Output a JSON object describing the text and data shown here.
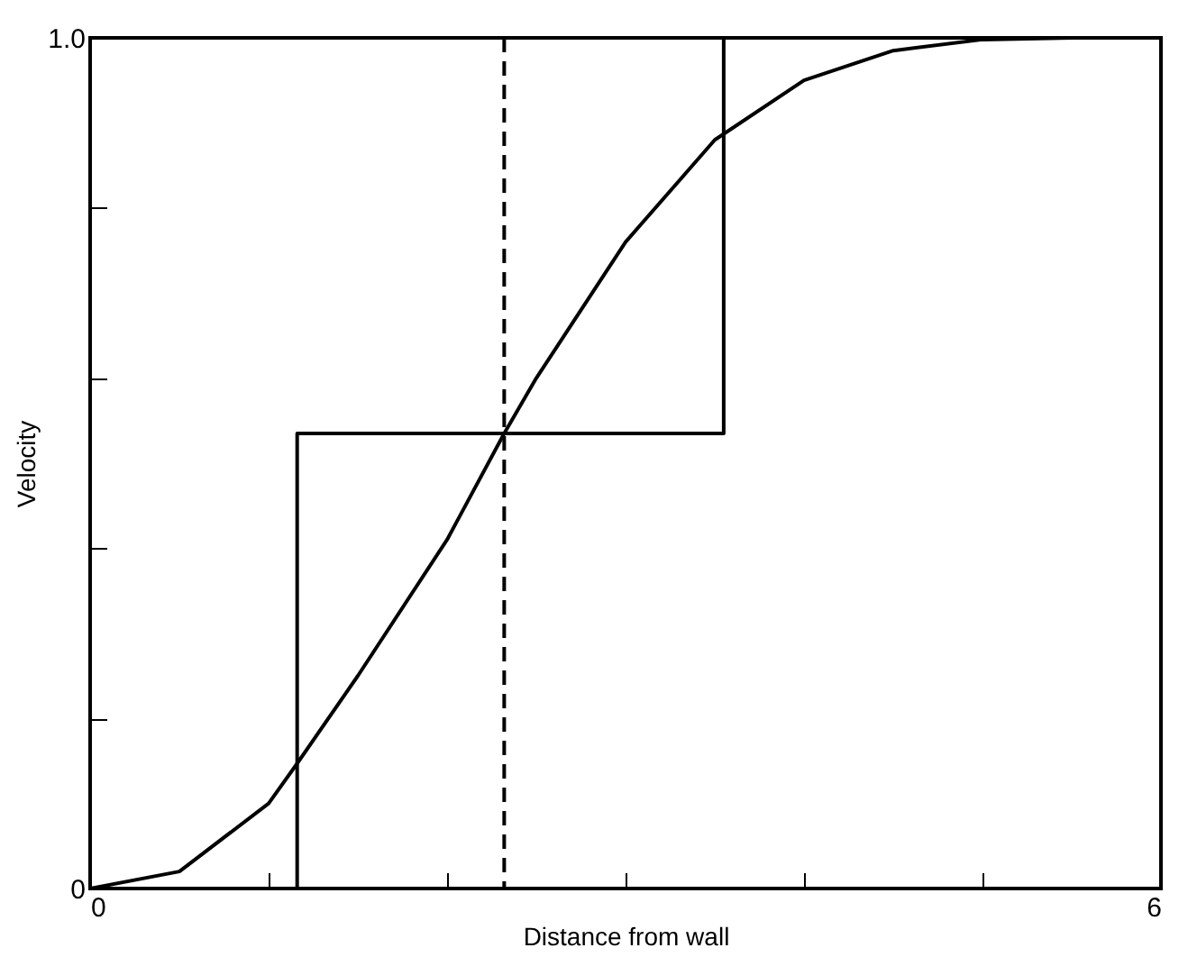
{
  "chart_data": {
    "type": "line",
    "xlabel": "Distance from wall",
    "ylabel": "Velocity",
    "xlim": [
      0,
      6
    ],
    "ylim": [
      0,
      1
    ],
    "xticks": [
      0,
      {
        "value": 1,
        "label": null
      },
      {
        "value": 2,
        "label": null
      },
      {
        "value": 3,
        "label": null
      },
      {
        "value": 4,
        "label": null
      },
      {
        "value": 5,
        "label": null
      },
      6
    ],
    "yticks": [
      0,
      {
        "value": 0.2,
        "label": null
      },
      {
        "value": 0.4,
        "label": null
      },
      {
        "value": 0.6,
        "label": null
      },
      {
        "value": 0.8,
        "label": null
      },
      {
        "value": 1,
        "label": "1.0"
      }
    ],
    "grid": false,
    "series": [
      {
        "color": "#000000",
        "x": [
          0,
          0.5,
          1,
          1.16,
          1.5,
          2,
          2.32,
          2.5,
          3,
          3.5,
          4,
          4.5,
          5,
          5.5,
          6
        ],
        "values": [
          0,
          0.02,
          0.1,
          0.147,
          0.25,
          0.41,
          0.535,
          0.6,
          0.76,
          0.88,
          0.95,
          0.985,
          0.998,
          1,
          1
        ]
      },
      {
        "color": "#000000",
        "x": [
          1.16,
          1.16,
          3.55,
          3.55
        ],
        "values": [
          0,
          0.535,
          0.535,
          1
        ]
      }
    ],
    "ref_lines": [
      {
        "axis": "x",
        "value": 2.32,
        "line_style": "dashed",
        "color": "#000000"
      }
    ]
  }
}
